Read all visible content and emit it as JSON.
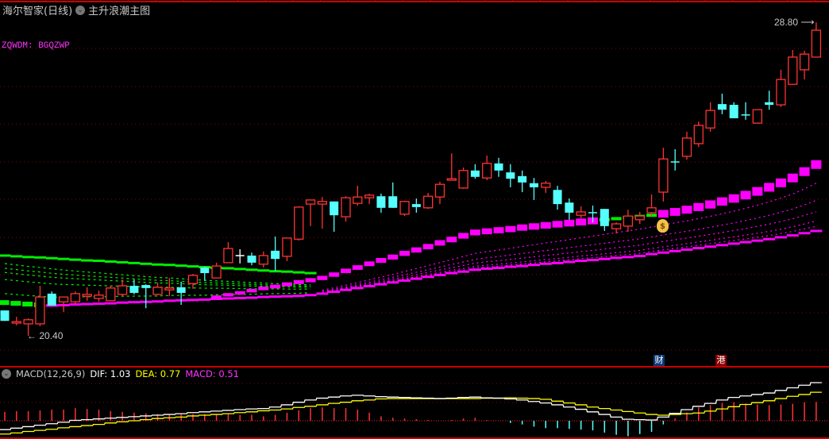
{
  "header": {
    "stock_title": "海尔智家(日线)",
    "indicator_name": "主升浪潮主图",
    "dropdown_icon": "chevron-down-circle-icon"
  },
  "formula_label": "ZQWDM: BGQZWP",
  "price_labels": {
    "high": "28.80",
    "low": "20.40"
  },
  "markers": {
    "finance": "财",
    "hk": "港",
    "money_bag_icon": "money-bag-icon"
  },
  "macd_header": {
    "name": "MACD(12,26,9)",
    "dif": "DIF: 1.03",
    "dea": "DEA: 0.77",
    "macd": "MACD: 0.51"
  },
  "colors": {
    "up": "#ff3333",
    "down": "#55ffff",
    "doji": "#ffffff",
    "green_line": "#00ee00",
    "magenta_line": "#ff00ff",
    "grid": "#8b0000",
    "border": "#cc0000",
    "dif": "#ffffff",
    "dea": "#ffff00"
  },
  "chart_data": [
    {
      "type": "candlestick",
      "title": "海尔智家(日线)",
      "price_range": [
        20.4,
        28.8
      ],
      "grid": true,
      "ohlc_order": [
        "open",
        "high",
        "low",
        "close"
      ],
      "candles": [
        [
          21.08,
          21.08,
          20.8,
          20.8
        ],
        [
          20.74,
          20.91,
          20.68,
          20.78
        ],
        [
          20.72,
          20.87,
          20.4,
          20.83
        ],
        [
          20.72,
          21.74,
          20.66,
          21.44
        ],
        [
          21.53,
          21.59,
          21.21,
          21.21
        ],
        [
          21.31,
          21.44,
          21.04,
          21.44
        ],
        [
          21.31,
          21.59,
          21.25,
          21.53
        ],
        [
          21.46,
          21.7,
          21.34,
          21.51
        ],
        [
          21.4,
          21.61,
          21.31,
          21.49
        ],
        [
          21.34,
          21.74,
          21.34,
          21.68
        ],
        [
          21.51,
          21.91,
          21.46,
          21.74
        ],
        [
          21.74,
          21.91,
          21.51,
          21.55
        ],
        [
          21.76,
          21.78,
          21.14,
          21.68
        ],
        [
          21.51,
          21.83,
          21.49,
          21.7
        ],
        [
          21.63,
          21.95,
          21.46,
          21.68
        ],
        [
          21.7,
          21.85,
          21.23,
          21.55
        ],
        [
          21.8,
          22.06,
          21.66,
          22.02
        ],
        [
          22.23,
          22.25,
          21.87,
          22.08
        ],
        [
          21.95,
          22.36,
          21.95,
          22.27
        ],
        [
          22.36,
          22.91,
          22.36,
          22.74
        ],
        [
          22.55,
          22.72,
          22.34,
          22.55
        ],
        [
          22.55,
          22.63,
          22.29,
          22.36
        ],
        [
          22.32,
          22.66,
          22.23,
          22.55
        ],
        [
          22.68,
          23.06,
          22.14,
          22.46
        ],
        [
          22.53,
          23.02,
          22.4,
          23.02
        ],
        [
          22.99,
          23.87,
          22.95,
          23.85
        ],
        [
          23.93,
          24.04,
          23.34,
          24.04
        ],
        [
          23.93,
          24.12,
          23.27,
          24.0
        ],
        [
          24.0,
          24.0,
          23.19,
          23.63
        ],
        [
          23.59,
          24.14,
          23.46,
          24.1
        ],
        [
          23.95,
          24.42,
          23.89,
          24.12
        ],
        [
          24.1,
          24.21,
          23.93,
          24.17
        ],
        [
          24.14,
          24.21,
          23.7,
          23.83
        ],
        [
          24.14,
          24.51,
          23.83,
          23.83
        ],
        [
          23.66,
          24.02,
          23.61,
          24.0
        ],
        [
          23.93,
          24.08,
          23.7,
          23.85
        ],
        [
          23.83,
          24.23,
          23.8,
          24.14
        ],
        [
          24.12,
          24.53,
          23.93,
          24.46
        ],
        [
          24.57,
          25.29,
          24.57,
          24.61
        ],
        [
          24.36,
          24.91,
          24.34,
          24.83
        ],
        [
          24.83,
          25.0,
          24.61,
          24.66
        ],
        [
          24.63,
          25.23,
          24.57,
          25.02
        ],
        [
          25.02,
          25.17,
          24.66,
          24.83
        ],
        [
          24.78,
          25.0,
          24.38,
          24.61
        ],
        [
          24.68,
          24.83,
          24.25,
          24.51
        ],
        [
          24.49,
          24.63,
          24.04,
          24.38
        ],
        [
          24.38,
          24.55,
          24.23,
          24.49
        ],
        [
          24.31,
          24.42,
          23.78,
          23.93
        ],
        [
          23.97,
          24.08,
          23.51,
          23.7
        ],
        [
          23.63,
          23.87,
          23.55,
          23.72
        ],
        [
          23.7,
          23.89,
          23.44,
          23.68
        ],
        [
          23.8,
          23.8,
          23.21,
          23.34
        ],
        [
          23.27,
          23.44,
          23.14,
          23.4
        ],
        [
          23.34,
          23.78,
          23.19,
          23.61
        ],
        [
          23.51,
          23.72,
          23.4,
          23.61
        ],
        [
          23.7,
          24.19,
          23.61,
          23.83
        ],
        [
          24.25,
          25.44,
          24.0,
          25.14
        ],
        [
          25.06,
          25.4,
          24.83,
          25.04
        ],
        [
          25.21,
          25.87,
          25.12,
          25.7
        ],
        [
          25.55,
          26.14,
          25.46,
          26.04
        ],
        [
          25.97,
          26.66,
          25.87,
          26.44
        ],
        [
          26.61,
          26.89,
          26.34,
          26.46
        ],
        [
          26.59,
          26.66,
          26.23,
          26.23
        ],
        [
          26.32,
          26.66,
          26.19,
          26.31
        ],
        [
          26.1,
          26.46,
          26.1,
          26.46
        ],
        [
          26.66,
          26.97,
          26.46,
          26.59
        ],
        [
          26.59,
          27.53,
          26.53,
          27.27
        ],
        [
          27.14,
          28.06,
          27.14,
          27.87
        ],
        [
          27.53,
          28.04,
          27.27,
          27.95
        ],
        [
          27.87,
          28.8,
          27.87,
          28.59
        ]
      ],
      "overlay_lines": [
        {
          "color": "green",
          "values": [
            22.55,
            22.53,
            22.51,
            22.5,
            22.48,
            22.46,
            22.44,
            22.42,
            22.41,
            22.39,
            22.37,
            22.35,
            22.33,
            22.31,
            22.3,
            22.28,
            22.26,
            22.24,
            22.22,
            22.21,
            22.19,
            22.17,
            22.15,
            22.13,
            22.12,
            22.1,
            22.08
          ]
        },
        {
          "color": "magenta",
          "green_segment": [
            51,
            55
          ],
          "values": [
            null,
            null,
            null,
            null,
            null,
            null,
            null,
            null,
            null,
            null,
            null,
            null,
            null,
            null,
            null,
            null,
            null,
            null,
            21.44,
            21.5,
            21.55,
            21.61,
            21.67,
            21.72,
            21.78,
            21.84,
            21.89,
            21.95,
            22.04,
            22.14,
            22.23,
            22.33,
            22.42,
            22.51,
            22.61,
            22.7,
            22.79,
            22.89,
            22.98,
            23.08,
            23.17,
            23.2,
            23.23,
            23.26,
            23.3,
            23.33,
            23.36,
            23.39,
            23.42,
            23.45,
            23.48,
            23.51,
            23.54,
            23.57,
            23.6,
            23.63,
            23.67,
            23.72,
            23.78,
            23.85,
            23.92,
            24.0,
            24.08,
            24.17,
            24.27,
            24.38,
            24.5,
            24.63,
            24.8,
            24.99
          ]
        },
        {
          "color": "magenta",
          "green_segment": [
            0,
            3
          ],
          "values": [
            21.29,
            21.27,
            21.25,
            21.23,
            21.21,
            21.22,
            21.24,
            21.25,
            21.26,
            21.27,
            21.29,
            21.3,
            21.31,
            21.32,
            21.34,
            21.35,
            21.36,
            21.37,
            21.39,
            21.4,
            21.41,
            21.42,
            21.44,
            21.45,
            21.46,
            21.47,
            21.49,
            21.53,
            21.58,
            21.63,
            21.68,
            21.73,
            21.78,
            21.83,
            21.88,
            21.93,
            21.98,
            22.03,
            22.08,
            22.12,
            22.17,
            22.2,
            22.22,
            22.25,
            22.27,
            22.3,
            22.33,
            22.35,
            22.38,
            22.41,
            22.43,
            22.46,
            22.49,
            22.51,
            22.54,
            22.59,
            22.63,
            22.67,
            22.71,
            22.75,
            22.79,
            22.83,
            22.87,
            22.91,
            22.95,
            22.99,
            23.04,
            23.09,
            23.15,
            23.21
          ]
        }
      ]
    },
    {
      "type": "macd",
      "params": "12,26,9",
      "dif": [
        -0.24,
        -0.2,
        -0.16,
        -0.12,
        -0.08,
        -0.04,
        0.01,
        0.03,
        0.05,
        0.07,
        0.09,
        0.11,
        0.13,
        0.15,
        0.17,
        0.19,
        0.22,
        0.24,
        0.26,
        0.28,
        0.3,
        0.32,
        0.33,
        0.37,
        0.43,
        0.5,
        0.56,
        0.61,
        0.64,
        0.67,
        0.69,
        0.67,
        0.65,
        0.64,
        0.63,
        0.62,
        0.61,
        0.6,
        0.61,
        0.63,
        0.64,
        0.62,
        0.61,
        0.59,
        0.56,
        0.52,
        0.48,
        0.43,
        0.37,
        0.31,
        0.24,
        0.17,
        0.1,
        0.04,
        0.03,
        0.02,
        0.1,
        0.2,
        0.3,
        0.39,
        0.47,
        0.56,
        0.63,
        0.67,
        0.71,
        0.75,
        0.82,
        0.89,
        0.96,
        1.03
      ],
      "dea": [
        -0.36,
        -0.33,
        -0.29,
        -0.26,
        -0.23,
        -0.19,
        -0.16,
        -0.13,
        -0.1,
        -0.06,
        -0.03,
        0.0,
        0.03,
        0.06,
        0.08,
        0.1,
        0.13,
        0.15,
        0.17,
        0.19,
        0.22,
        0.24,
        0.27,
        0.29,
        0.32,
        0.36,
        0.39,
        0.43,
        0.47,
        0.5,
        0.54,
        0.56,
        0.59,
        0.6,
        0.6,
        0.6,
        0.6,
        0.6,
        0.6,
        0.6,
        0.6,
        0.61,
        0.61,
        0.62,
        0.61,
        0.6,
        0.58,
        0.53,
        0.48,
        0.43,
        0.37,
        0.33,
        0.29,
        0.25,
        0.21,
        0.17,
        0.15,
        0.17,
        0.19,
        0.21,
        0.26,
        0.32,
        0.38,
        0.44,
        0.49,
        0.54,
        0.6,
        0.66,
        0.71,
        0.77
      ],
      "macd": [
        0.24,
        0.26,
        0.26,
        0.28,
        0.3,
        0.3,
        0.34,
        0.32,
        0.3,
        0.26,
        0.24,
        0.22,
        0.2,
        0.18,
        0.18,
        0.18,
        0.18,
        0.18,
        0.18,
        0.18,
        0.16,
        0.16,
        0.12,
        0.16,
        0.22,
        0.28,
        0.34,
        0.36,
        0.34,
        0.34,
        0.3,
        0.22,
        0.12,
        0.08,
        0.06,
        0.04,
        0.02,
        0.0,
        0.02,
        0.06,
        0.08,
        0.02,
        0.0,
        -0.06,
        -0.1,
        -0.16,
        -0.2,
        -0.2,
        -0.22,
        -0.24,
        -0.26,
        -0.32,
        -0.38,
        -0.42,
        -0.36,
        -0.3,
        -0.1,
        0.06,
        0.22,
        0.36,
        0.42,
        0.48,
        0.5,
        0.46,
        0.44,
        0.42,
        0.44,
        0.46,
        0.5,
        0.51
      ]
    }
  ]
}
